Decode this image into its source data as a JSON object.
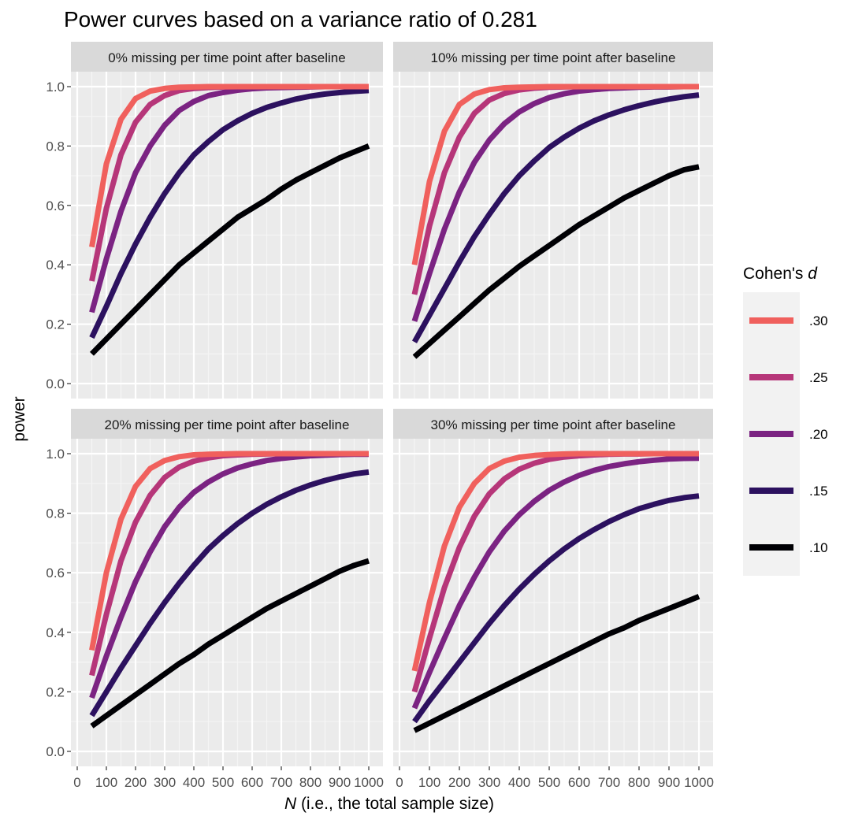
{
  "chart_data": {
    "type": "line",
    "title": "Power curves based on a variance ratio of 0.281",
    "xlabel_italic": "N",
    "xlabel_rest": " (i.e., the total sample size)",
    "ylabel": "power",
    "xlim": [
      0,
      1000
    ],
    "ylim": [
      0,
      1
    ],
    "x_ticks": [
      "0",
      "100",
      "200",
      "300",
      "400",
      "500",
      "600",
      "700",
      "800",
      "900",
      "1000"
    ],
    "y_ticks": [
      "0.0",
      "0.2",
      "0.4",
      "0.6",
      "0.8",
      "1.0"
    ],
    "grid": true,
    "legend": {
      "title_prefix": "Cohen's ",
      "title_italic": "d",
      "position": "right"
    },
    "series_style": [
      {
        "name": ".30",
        "color": "#f0605d"
      },
      {
        "name": ".25",
        "color": "#b63679"
      },
      {
        "name": ".20",
        "color": "#7b2382"
      },
      {
        "name": ".15",
        "color": "#2c115f"
      },
      {
        "name": ".10",
        "color": "#000004"
      }
    ],
    "x": [
      50,
      100,
      150,
      200,
      250,
      300,
      350,
      400,
      450,
      500,
      550,
      600,
      650,
      700,
      750,
      800,
      850,
      900,
      950,
      1000
    ],
    "panels": [
      {
        "strip": "0% missing per time point after baseline",
        "series": [
          {
            "name": ".30",
            "values": [
              0.46,
              0.74,
              0.89,
              0.96,
              0.985,
              0.994,
              0.998,
              0.999,
              1.0,
              1.0,
              1.0,
              1.0,
              1.0,
              1.0,
              1.0,
              1.0,
              1.0,
              1.0,
              1.0,
              1.0
            ]
          },
          {
            "name": ".25",
            "values": [
              0.345,
              0.59,
              0.77,
              0.88,
              0.94,
              0.97,
              0.987,
              0.994,
              0.997,
              0.999,
              1.0,
              1.0,
              1.0,
              1.0,
              1.0,
              1.0,
              1.0,
              1.0,
              1.0,
              1.0
            ]
          },
          {
            "name": ".20",
            "values": [
              0.24,
              0.42,
              0.58,
              0.71,
              0.8,
              0.87,
              0.92,
              0.95,
              0.97,
              0.98,
              0.988,
              0.993,
              0.996,
              0.997,
              0.998,
              0.999,
              1.0,
              1.0,
              1.0,
              1.0
            ]
          },
          {
            "name": ".15",
            "values": [
              0.155,
              0.26,
              0.37,
              0.47,
              0.56,
              0.64,
              0.71,
              0.77,
              0.815,
              0.855,
              0.885,
              0.91,
              0.93,
              0.945,
              0.958,
              0.968,
              0.975,
              0.98,
              0.984,
              0.987
            ]
          },
          {
            "name": ".10",
            "values": [
              0.1,
              0.15,
              0.2,
              0.25,
              0.3,
              0.35,
              0.4,
              0.44,
              0.48,
              0.52,
              0.56,
              0.59,
              0.62,
              0.655,
              0.685,
              0.71,
              0.735,
              0.76,
              0.78,
              0.8
            ]
          }
        ]
      },
      {
        "strip": "10% missing per time point after baseline",
        "series": [
          {
            "name": ".30",
            "values": [
              0.4,
              0.68,
              0.85,
              0.94,
              0.975,
              0.99,
              0.996,
              0.998,
              0.999,
              1.0,
              1.0,
              1.0,
              1.0,
              1.0,
              1.0,
              1.0,
              1.0,
              1.0,
              1.0,
              1.0
            ]
          },
          {
            "name": ".25",
            "values": [
              0.3,
              0.53,
              0.71,
              0.83,
              0.91,
              0.955,
              0.977,
              0.989,
              0.995,
              0.998,
              0.999,
              1.0,
              1.0,
              1.0,
              1.0,
              1.0,
              1.0,
              1.0,
              1.0,
              1.0
            ]
          },
          {
            "name": ".20",
            "values": [
              0.21,
              0.37,
              0.52,
              0.645,
              0.745,
              0.82,
              0.875,
              0.915,
              0.943,
              0.963,
              0.976,
              0.985,
              0.99,
              0.994,
              0.996,
              0.998,
              0.999,
              0.999,
              1.0,
              1.0
            ]
          },
          {
            "name": ".15",
            "values": [
              0.14,
              0.23,
              0.32,
              0.41,
              0.495,
              0.57,
              0.64,
              0.7,
              0.75,
              0.795,
              0.83,
              0.86,
              0.885,
              0.905,
              0.922,
              0.936,
              0.948,
              0.958,
              0.966,
              0.972
            ]
          },
          {
            "name": ".10",
            "values": [
              0.09,
              0.135,
              0.18,
              0.225,
              0.27,
              0.315,
              0.355,
              0.395,
              0.43,
              0.465,
              0.5,
              0.535,
              0.565,
              0.595,
              0.625,
              0.65,
              0.675,
              0.7,
              0.72,
              0.73
            ]
          }
        ]
      },
      {
        "strip": "20% missing per time point after baseline",
        "series": [
          {
            "name": ".30",
            "values": [
              0.34,
              0.6,
              0.78,
              0.89,
              0.95,
              0.977,
              0.99,
              0.996,
              0.998,
              0.999,
              1.0,
              1.0,
              1.0,
              1.0,
              1.0,
              1.0,
              1.0,
              1.0,
              1.0,
              1.0
            ]
          },
          {
            "name": ".25",
            "values": [
              0.255,
              0.46,
              0.64,
              0.77,
              0.86,
              0.92,
              0.955,
              0.975,
              0.986,
              0.993,
              0.996,
              0.998,
              0.999,
              1.0,
              1.0,
              1.0,
              1.0,
              1.0,
              1.0,
              1.0
            ]
          },
          {
            "name": ".20",
            "values": [
              0.18,
              0.32,
              0.45,
              0.57,
              0.67,
              0.755,
              0.82,
              0.87,
              0.905,
              0.932,
              0.952,
              0.966,
              0.977,
              0.984,
              0.989,
              0.993,
              0.995,
              0.997,
              0.998,
              0.998
            ]
          },
          {
            "name": ".15",
            "values": [
              0.12,
              0.2,
              0.28,
              0.355,
              0.43,
              0.5,
              0.565,
              0.625,
              0.68,
              0.725,
              0.765,
              0.8,
              0.83,
              0.855,
              0.877,
              0.895,
              0.91,
              0.922,
              0.932,
              0.938
            ]
          },
          {
            "name": ".10",
            "values": [
              0.085,
              0.12,
              0.155,
              0.19,
              0.225,
              0.26,
              0.295,
              0.325,
              0.36,
              0.39,
              0.42,
              0.45,
              0.48,
              0.505,
              0.53,
              0.555,
              0.58,
              0.605,
              0.625,
              0.64
            ]
          }
        ]
      },
      {
        "strip": "30% missing per time point after baseline",
        "series": [
          {
            "name": ".30",
            "values": [
              0.27,
              0.5,
              0.69,
              0.82,
              0.9,
              0.95,
              0.975,
              0.988,
              0.994,
              0.997,
              0.999,
              1.0,
              1.0,
              1.0,
              1.0,
              1.0,
              1.0,
              1.0,
              1.0,
              1.0
            ]
          },
          {
            "name": ".25",
            "values": [
              0.2,
              0.38,
              0.55,
              0.685,
              0.79,
              0.865,
              0.915,
              0.948,
              0.968,
              0.981,
              0.989,
              0.993,
              0.996,
              0.998,
              0.999,
              0.999,
              1.0,
              1.0,
              1.0,
              1.0
            ]
          },
          {
            "name": ".20",
            "values": [
              0.145,
              0.265,
              0.38,
              0.49,
              0.585,
              0.67,
              0.74,
              0.795,
              0.84,
              0.877,
              0.905,
              0.927,
              0.944,
              0.957,
              0.966,
              0.973,
              0.978,
              0.982,
              0.984,
              0.985
            ]
          },
          {
            "name": ".15",
            "values": [
              0.1,
              0.17,
              0.235,
              0.3,
              0.365,
              0.43,
              0.49,
              0.545,
              0.595,
              0.64,
              0.68,
              0.715,
              0.745,
              0.772,
              0.795,
              0.815,
              0.83,
              0.843,
              0.852,
              0.858
            ]
          },
          {
            "name": ".10",
            "values": [
              0.07,
              0.095,
              0.12,
              0.145,
              0.17,
              0.195,
              0.22,
              0.245,
              0.27,
              0.295,
              0.32,
              0.345,
              0.37,
              0.395,
              0.415,
              0.44,
              0.46,
              0.48,
              0.5,
              0.52
            ]
          }
        ]
      }
    ]
  }
}
